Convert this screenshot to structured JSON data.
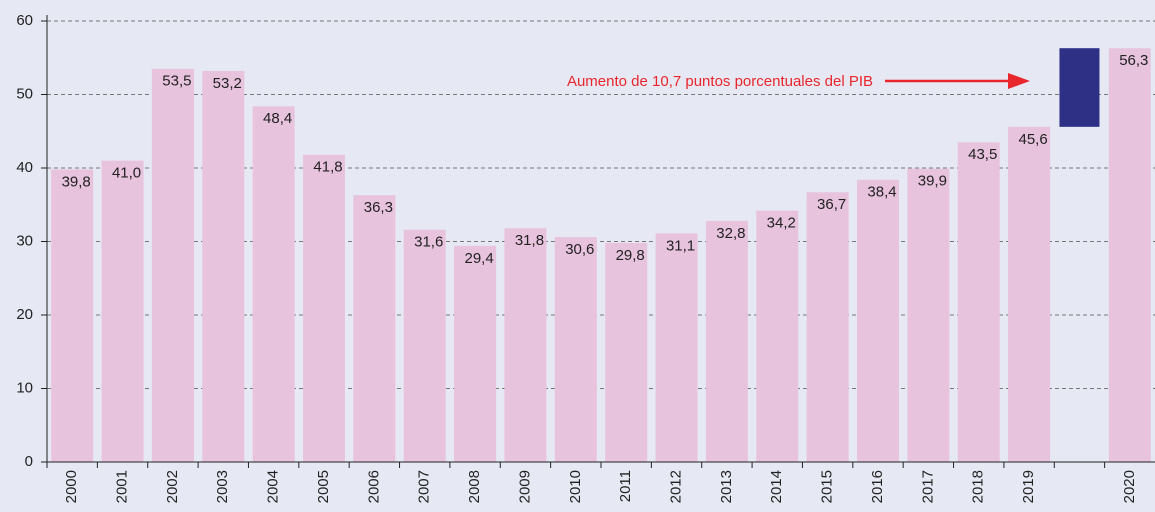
{
  "chart_data": {
    "type": "bar",
    "categories": [
      "2000",
      "2001",
      "2002",
      "2003",
      "2004",
      "2005",
      "2006",
      "2007",
      "2008",
      "2009",
      "2010",
      "2011",
      "2012",
      "2013",
      "2014",
      "2015",
      "2016",
      "2017",
      "2018",
      "2019",
      null,
      "2020"
    ],
    "values": [
      39.8,
      41.0,
      53.5,
      53.2,
      48.4,
      41.8,
      36.3,
      31.6,
      29.4,
      31.8,
      30.6,
      29.8,
      31.1,
      32.8,
      34.2,
      36.7,
      38.4,
      39.9,
      43.5,
      45.6,
      null,
      56.3
    ],
    "value_labels": [
      "39,8",
      "41,0",
      "53,5",
      "53,2",
      "48,4",
      "41,8",
      "36,3",
      "31,6",
      "29,4",
      "31,8",
      "30,6",
      "29,8",
      "31,1",
      "32,8",
      "34,2",
      "36,7",
      "38,4",
      "39,9",
      "43,5",
      "45,6",
      null,
      "56,3"
    ],
    "color": "#e8c3de",
    "increase_color": "#2e3085",
    "annotation": "Aumento de 10,7 puntos porcentuales del PIB",
    "annotation_color": "#e8262b",
    "ylim": [
      0,
      60
    ],
    "yticks": [
      0,
      10,
      20,
      30,
      40,
      50,
      60
    ],
    "grid": true
  }
}
